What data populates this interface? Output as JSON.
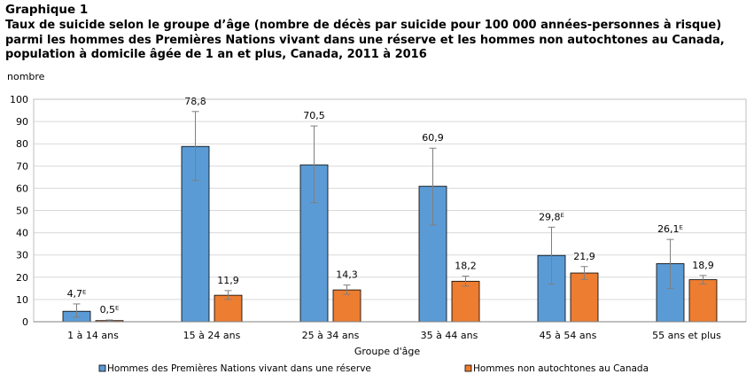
{
  "header": {
    "label": "Graphique  1",
    "title": "Taux de suicide selon le groupe d’âge (nombre de décès par suicide pour 100 000 années-personnes à risque) parmi les hommes des Premières Nations vivant dans une réserve et les hommes non autochtones au Canada, population  à domicile âgée de 1 an et plus, Canada, 2011 à 2016"
  },
  "colors": {
    "series1": "#5B9BD5",
    "series2": "#ED7D31",
    "errorbar": "#7f7f7f",
    "grid": "#d9d9d9"
  },
  "chart_data": {
    "type": "bar",
    "ylabel": "nombre",
    "xlabel": "Groupe d'âge",
    "ylim": [
      0,
      100
    ],
    "yticks": [
      0,
      10,
      20,
      30,
      40,
      50,
      60,
      70,
      80,
      90,
      100
    ],
    "grid": true,
    "legend_position": "bottom",
    "categories": [
      "1 à 14 ans",
      "15 à 24 ans",
      "25 à 34 ans",
      "35 à 44 ans",
      "45 à 54 ans",
      "55 ans et plus"
    ],
    "series": [
      {
        "name": "Hommes des Premières Nations vivant dans une réserve",
        "values": [
          4.7,
          78.8,
          70.5,
          60.9,
          29.8,
          26.1
        ],
        "labels": [
          "4,7ᴱ",
          "78,8",
          "70,5",
          "60,9",
          "29,8ᴱ",
          "26,1ᴱ"
        ],
        "error_low": [
          2.0,
          63.5,
          53.5,
          43.5,
          17.0,
          15.0
        ],
        "error_high": [
          8.0,
          94.5,
          88.0,
          78.0,
          42.5,
          37.0
        ]
      },
      {
        "name": "Hommes non autochtones au Canada",
        "values": [
          0.5,
          11.9,
          14.3,
          18.2,
          21.9,
          18.9
        ],
        "labels": [
          "0,5ᴱ",
          "11,9",
          "14,3",
          "18,2",
          "21,9",
          "18,9"
        ],
        "error_low": [
          0.3,
          10.0,
          12.3,
          16.0,
          19.0,
          17.0
        ],
        "error_high": [
          0.8,
          14.0,
          16.5,
          20.5,
          24.8,
          20.8
        ]
      }
    ]
  }
}
